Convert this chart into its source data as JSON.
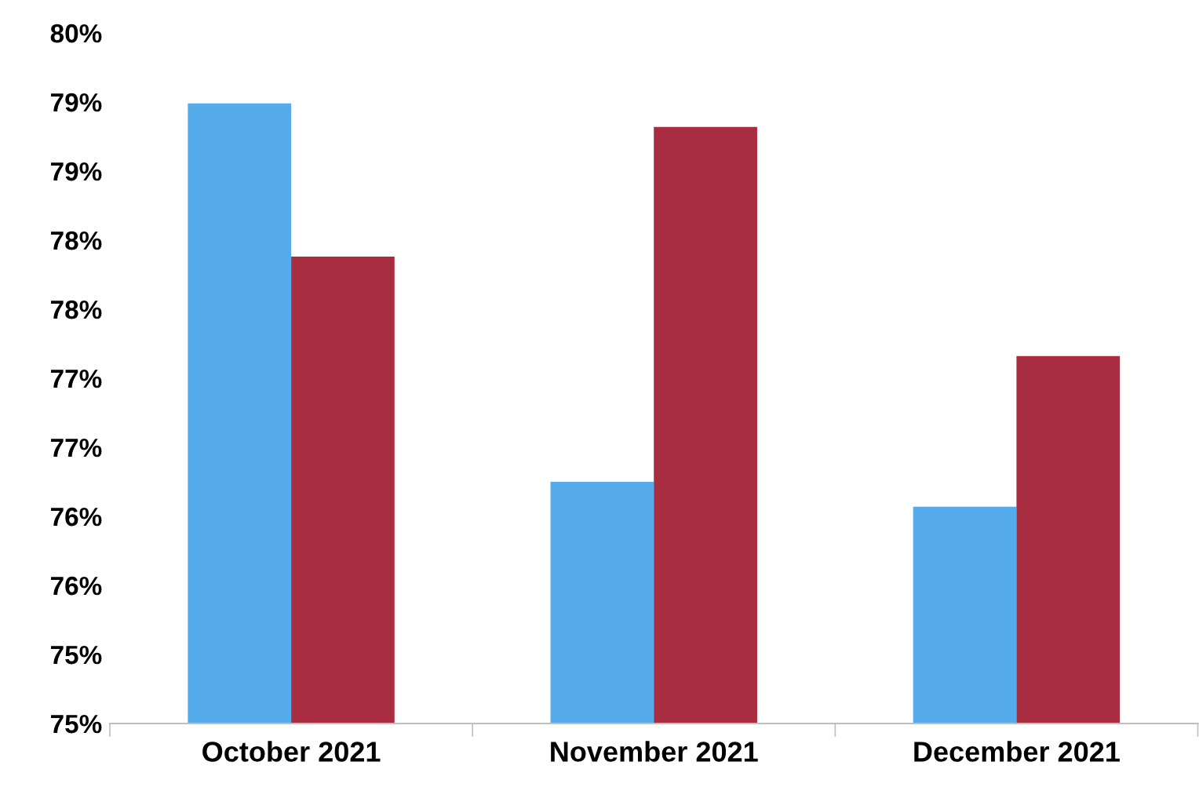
{
  "chart_data": {
    "type": "bar",
    "categories": [
      "October 2021",
      "November 2021",
      "December 2021"
    ],
    "series": [
      {
        "color": "#56acea",
        "values": [
          79.49,
          76.75,
          76.57
        ]
      },
      {
        "color": "#a82d40",
        "values": [
          78.38,
          79.32,
          77.66
        ]
      }
    ],
    "ylim": [
      75,
      80
    ],
    "yticks": [
      {
        "value": 75,
        "label": "75%"
      },
      {
        "value": 75.5,
        "label": "75%"
      },
      {
        "value": 76,
        "label": "76%"
      },
      {
        "value": 76.5,
        "label": "76%"
      },
      {
        "value": 77,
        "label": "77%"
      },
      {
        "value": 77.5,
        "label": "77%"
      },
      {
        "value": 78,
        "label": "78%"
      },
      {
        "value": 78.5,
        "label": "78%"
      },
      {
        "value": 79,
        "label": "79%"
      },
      {
        "value": 79.5,
        "label": "79%"
      },
      {
        "value": 80,
        "label": "80%"
      }
    ],
    "grid": false
  }
}
